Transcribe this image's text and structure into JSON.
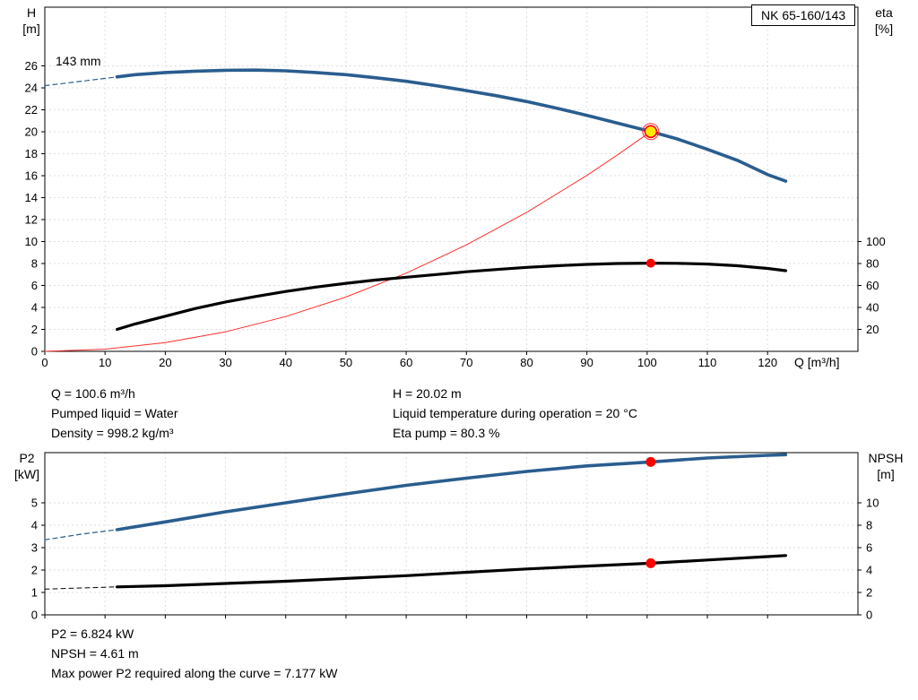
{
  "pump_box": {
    "label": "NK 65-160/143"
  },
  "colors": {
    "curve_blue": "#2a5d8f",
    "curve_black": "#000000",
    "curve_red": "#ff2e2e",
    "duty_yellow": "#ffe800",
    "marker_red": "#ff0000"
  },
  "top_chart": {
    "y_left_title": "H",
    "y_left_unit": "[m]",
    "y_right_title": "eta",
    "y_right_unit": "[%]",
    "x_title": "Q [m³/h]",
    "impeller_label": "143 mm"
  },
  "bottom_chart": {
    "y_left_title": "P2",
    "y_left_unit": "[kW]",
    "y_right_title": "NPSH",
    "y_right_unit": "[m]"
  },
  "info": {
    "flow": "Q = 100.6 m³/h",
    "liquid": "Pumped liquid = Water",
    "density": "Density = 998.2 kg/m³",
    "head": "H = 20.02 m",
    "temperature": "Liquid temperature during operation = 20 °C",
    "eta": "Eta pump = 80.3 %"
  },
  "footer": {
    "p2": "P2 = 6.824 kW",
    "npsh": "NPSH = 4.61 m",
    "max_power": "Max power P2 required along the curve = 7.177 kW"
  },
  "chart_data": [
    {
      "type": "line",
      "title": "NK 65-160/143",
      "xlabel": "Q [m³/h]",
      "ylabel_left": "H [m]",
      "ylabel_right": "eta [%]",
      "xlim": [
        0,
        135
      ],
      "ylim_left": [
        0,
        31.35
      ],
      "right_to_left_ratio": 0.1,
      "x_ticks": [
        0,
        10,
        20,
        30,
        40,
        50,
        60,
        70,
        80,
        90,
        100,
        110,
        120
      ],
      "y_ticks_left": [
        0,
        2,
        4,
        6,
        8,
        10,
        12,
        14,
        16,
        18,
        20,
        22,
        24,
        26
      ],
      "y_ticks_right": [
        20,
        40,
        60,
        80,
        100
      ],
      "grid": true,
      "series": [
        {
          "name": "system-curve",
          "color": "#ff2e2e",
          "width": 1,
          "axis": "left",
          "x": [
            0,
            10,
            20,
            30,
            40,
            50,
            60,
            70,
            80,
            90,
            95,
            100.6
          ],
          "y": [
            0,
            0.2,
            0.79,
            1.78,
            3.17,
            4.95,
            7.12,
            9.7,
            12.66,
            16.03,
            17.86,
            20.02
          ]
        },
        {
          "name": "eta-curve",
          "color": "#000000",
          "width": 3.2,
          "axis": "right",
          "x": [
            12,
            15,
            20,
            25,
            30,
            35,
            40,
            45,
            50,
            55,
            60,
            65,
            70,
            75,
            80,
            85,
            90,
            95,
            100.6,
            105,
            110,
            115,
            120,
            123
          ],
          "y": [
            20,
            25,
            32,
            39,
            45,
            50,
            54.5,
            58.5,
            62,
            65,
            67.5,
            70,
            72.5,
            74.5,
            76.5,
            78,
            79.2,
            80,
            80.3,
            80.2,
            79.5,
            78,
            75.5,
            73.5
          ]
        },
        {
          "name": "head-curve-extrapolated",
          "color": "#2a5d8f",
          "width": 1.2,
          "dash": true,
          "axis": "left",
          "x": [
            0,
            6,
            12
          ],
          "y": [
            24.2,
            24.6,
            25.0
          ]
        },
        {
          "name": "head-curve",
          "color": "#2a5d8f",
          "width": 3.6,
          "axis": "left",
          "x": [
            12,
            15,
            20,
            25,
            30,
            35,
            40,
            45,
            50,
            55,
            60,
            65,
            70,
            75,
            80,
            85,
            90,
            95,
            100.6,
            105,
            110,
            115,
            120,
            123
          ],
          "y": [
            25.0,
            25.2,
            25.4,
            25.52,
            25.6,
            25.62,
            25.55,
            25.4,
            25.2,
            24.92,
            24.6,
            24.2,
            23.75,
            23.28,
            22.75,
            22.15,
            21.5,
            20.8,
            20.02,
            19.35,
            18.4,
            17.4,
            16.1,
            15.5
          ]
        }
      ],
      "markers": [
        {
          "name": "duty-point-ring",
          "x": 100.6,
          "y": 20.02,
          "axis": "left",
          "r": 9,
          "fill": "none",
          "stroke": "#ff2e2e",
          "sw": 1
        },
        {
          "name": "duty-point-marker",
          "x": 100.6,
          "y": 20.02,
          "axis": "left",
          "r": 6.5,
          "fill": "#ffe800",
          "stroke": "#ff0000",
          "sw": 1.6
        },
        {
          "name": "eta-point-marker",
          "x": 100.6,
          "y": 80.3,
          "axis": "right",
          "r": 5,
          "fill": "#ff0000"
        }
      ]
    },
    {
      "type": "line",
      "title": "",
      "xlabel": "Q [m³/h]",
      "ylabel_left": "P2 [kW]",
      "ylabel_right": "NPSH [m]",
      "xlim": [
        0,
        135
      ],
      "ylim_left": [
        0,
        7.24
      ],
      "right_to_left_ratio": 0.5,
      "x_ticks": [
        0,
        10,
        20,
        30,
        40,
        50,
        60,
        70,
        80,
        90,
        100,
        110,
        120
      ],
      "y_ticks_left": [
        0,
        1,
        2,
        3,
        4,
        5
      ],
      "y_ticks_right": [
        0,
        2,
        4,
        6,
        8,
        10
      ],
      "grid": true,
      "series": [
        {
          "name": "p2-curve-extrapolated",
          "color": "#2a5d8f",
          "width": 1.2,
          "dash": true,
          "axis": "left",
          "x": [
            0,
            6,
            12
          ],
          "y": [
            3.35,
            3.6,
            3.8
          ]
        },
        {
          "name": "p2-curve",
          "color": "#2a5d8f",
          "width": 3.6,
          "axis": "left",
          "x": [
            12,
            20,
            30,
            40,
            50,
            60,
            70,
            80,
            90,
            100.6,
            110,
            120,
            123
          ],
          "y": [
            3.8,
            4.15,
            4.6,
            5.0,
            5.4,
            5.78,
            6.1,
            6.4,
            6.65,
            6.824,
            7.0,
            7.12,
            7.15
          ]
        },
        {
          "name": "npsh-curve-extrapolated",
          "color": "#000000",
          "width": 1,
          "dash": true,
          "axis": "right",
          "x": [
            0,
            6,
            12
          ],
          "y": [
            2.3,
            2.4,
            2.5
          ]
        },
        {
          "name": "npsh-curve",
          "color": "#000000",
          "width": 3.2,
          "axis": "right",
          "x": [
            12,
            20,
            30,
            40,
            50,
            60,
            70,
            80,
            90,
            100.6,
            110,
            120,
            123
          ],
          "y": [
            2.5,
            2.6,
            2.8,
            3.0,
            3.25,
            3.5,
            3.8,
            4.1,
            4.35,
            4.61,
            4.9,
            5.2,
            5.3
          ]
        }
      ],
      "markers": [
        {
          "name": "p2-point-marker",
          "x": 100.6,
          "y": 6.824,
          "axis": "left",
          "r": 5.5,
          "fill": "#ff0000"
        },
        {
          "name": "npsh-point-marker",
          "x": 100.6,
          "y": 4.61,
          "axis": "right",
          "r": 5.5,
          "fill": "#ff0000"
        }
      ]
    }
  ]
}
